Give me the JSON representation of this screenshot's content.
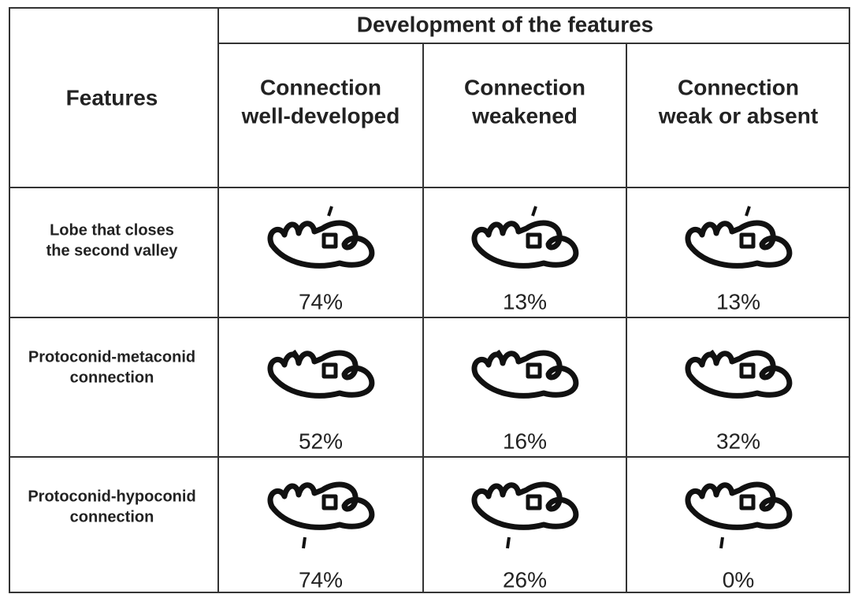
{
  "header": {
    "features": "Features",
    "title": "Development of the features",
    "columns": [
      [
        "Connection",
        "well-developed"
      ],
      [
        "Connection",
        "weakened"
      ],
      [
        "Connection",
        "weak or absent"
      ]
    ]
  },
  "rows": [
    {
      "label": [
        "Lobe that closes",
        "the second valley"
      ],
      "values": [
        "74%",
        "13%",
        "13%"
      ]
    },
    {
      "label": [
        "Protoconid-metaconid",
        "connection"
      ],
      "values": [
        "52%",
        "16%",
        "32%"
      ]
    },
    {
      "label": [
        "Protoconid-hypoconid",
        "connection"
      ],
      "values": [
        "74%",
        "26%",
        "0%"
      ]
    }
  ]
}
